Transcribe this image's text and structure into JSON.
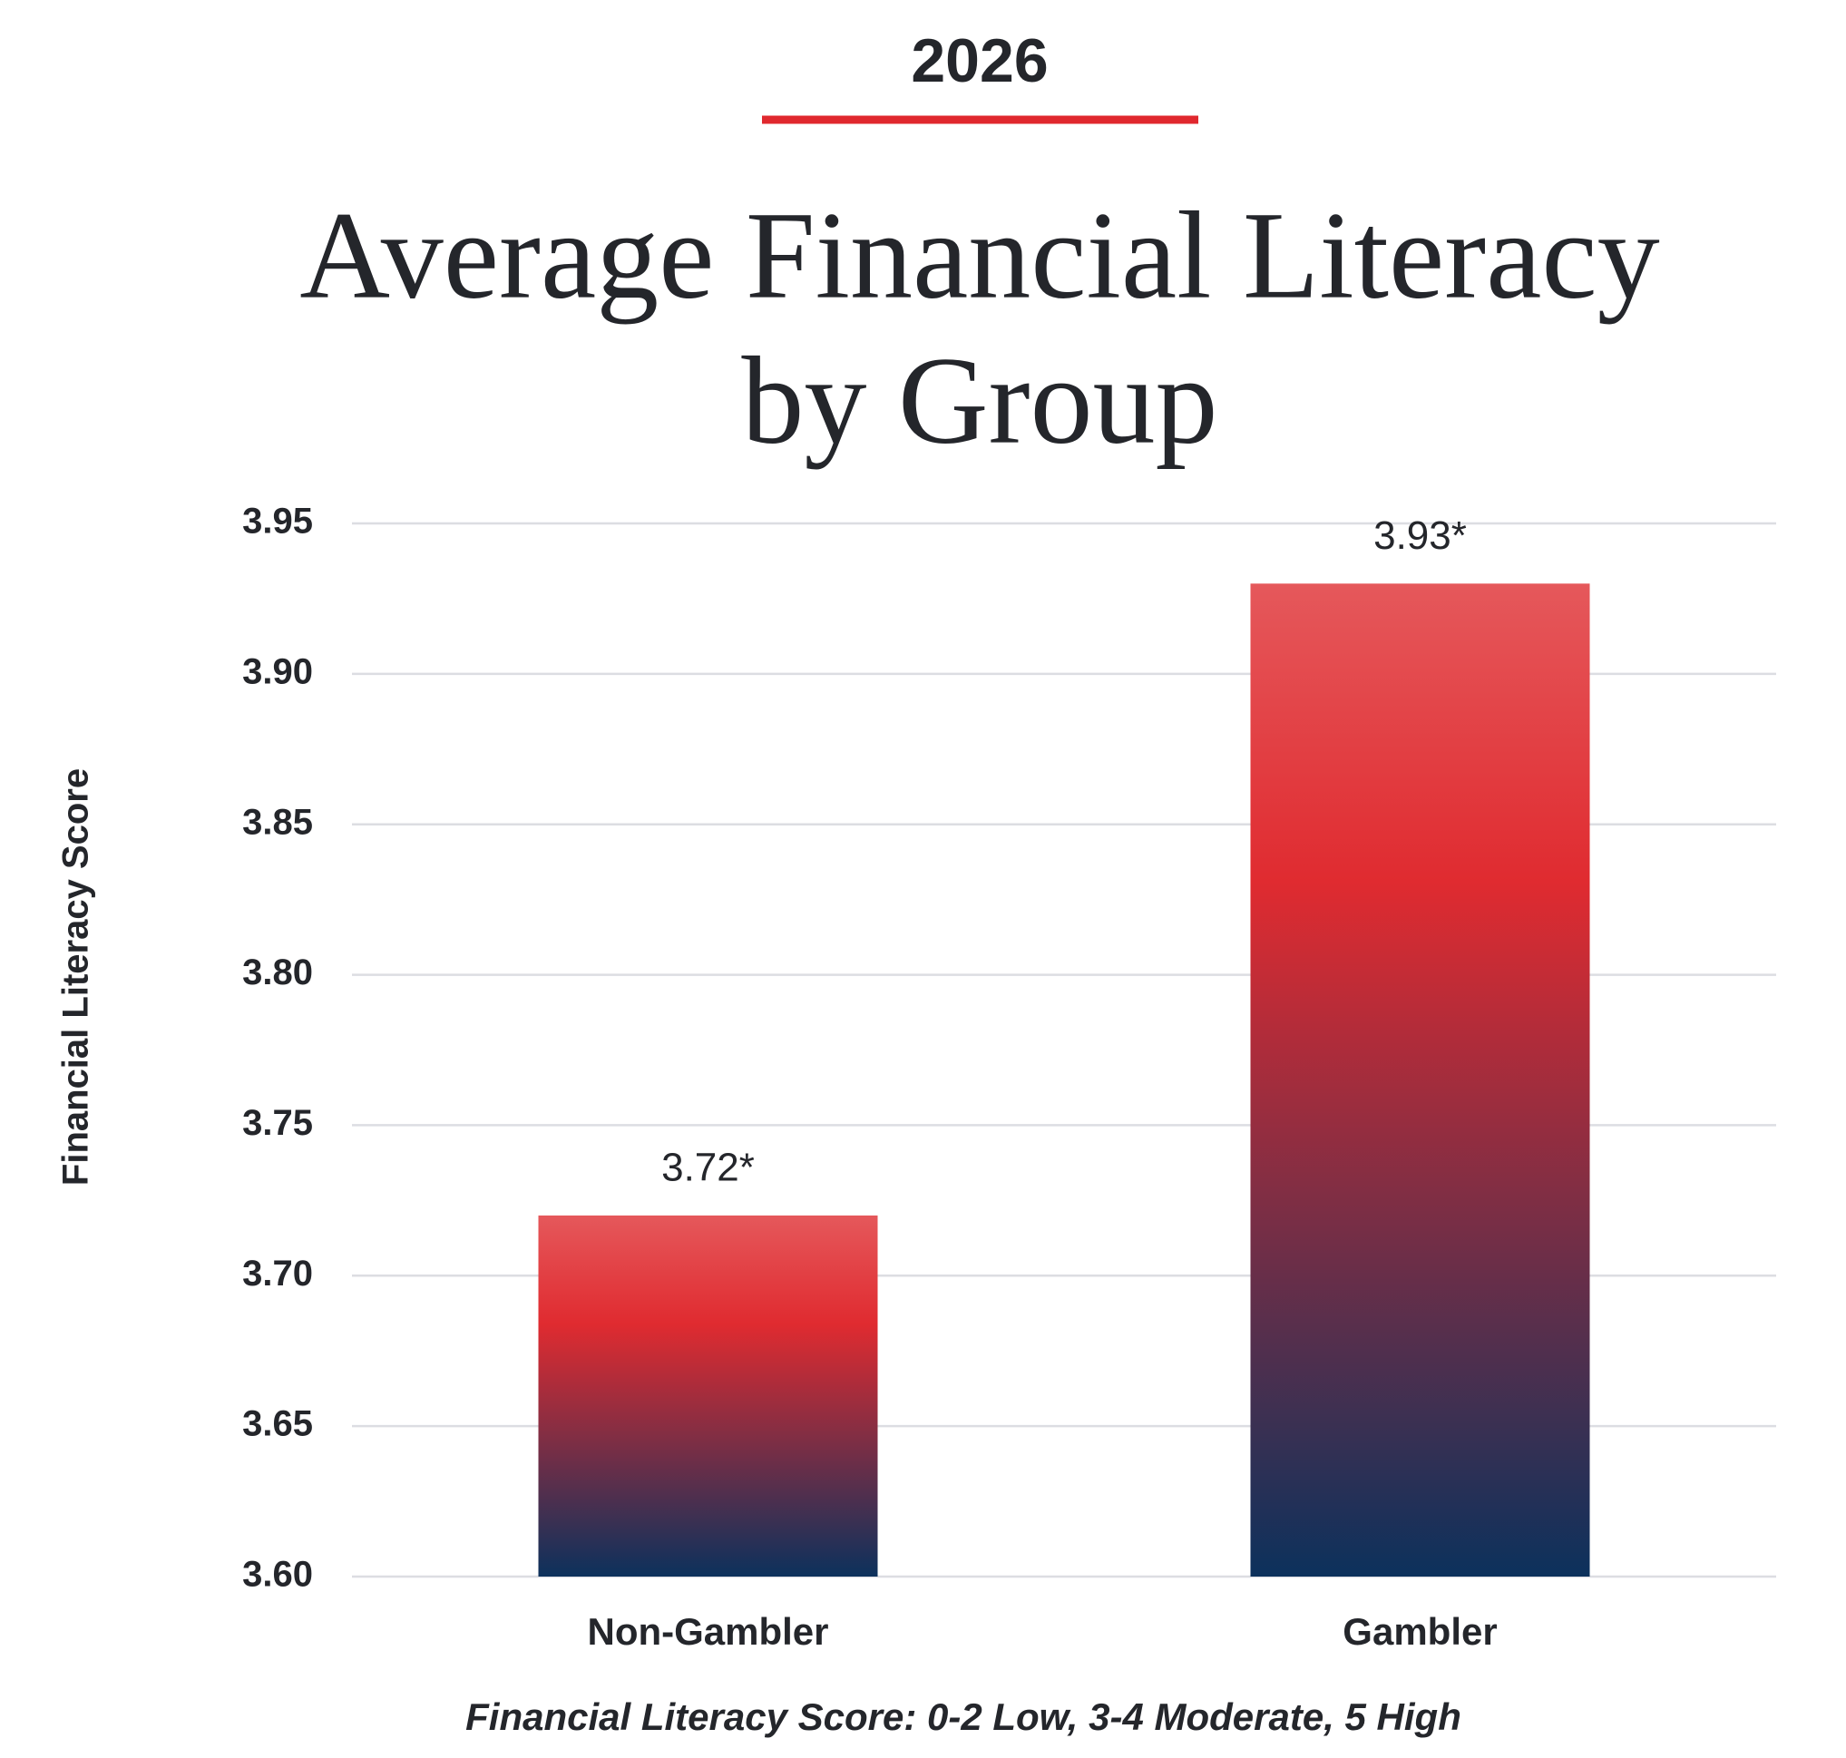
{
  "chart_data": {
    "type": "bar",
    "kicker": "2026",
    "title": [
      "Average Financial Literacy",
      "by Group"
    ],
    "y_label": "Financial Literacy Score",
    "note": "Financial Literacy Score: 0-2 Low, 3-4 Moderate, 5 High",
    "categories": [
      "Non-Gambler",
      "Gambler"
    ],
    "values": [
      3.72,
      3.93
    ],
    "value_labels": [
      "3.72*",
      "3.93*"
    ],
    "gradient": [
      "#e5585b",
      "#e02b30",
      "#0c315c"
    ],
    "accent": "#e0282e",
    "ylim": [
      3.6,
      3.95
    ],
    "yticks": [
      {
        "value": 3.6,
        "label": "3.60"
      },
      {
        "value": 3.65,
        "label": "3.65"
      },
      {
        "value": 3.7,
        "label": "3.70"
      },
      {
        "value": 3.75,
        "label": "3.75"
      },
      {
        "value": 3.8,
        "label": "3.80"
      },
      {
        "value": 3.85,
        "label": "3.85"
      },
      {
        "value": 3.9,
        "label": "3.90"
      },
      {
        "value": 3.95,
        "label": "3.95"
      }
    ],
    "grid": true
  }
}
